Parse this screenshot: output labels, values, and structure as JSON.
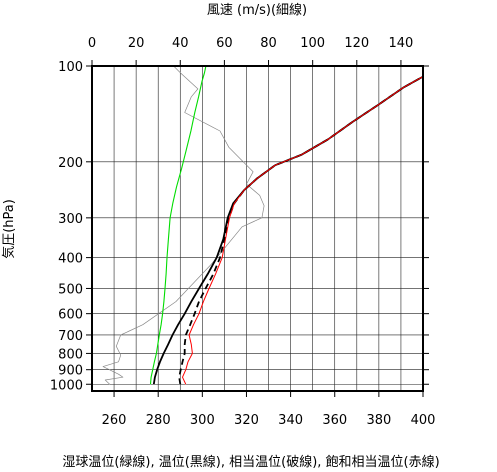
{
  "chart_data": {
    "type": "line",
    "title_top": "風速 (m/s)(細線)",
    "ylabel": "気圧(hPa)",
    "xlabel": "湿球温位(緑線), 温位(黒線), 相当温位(破線), 飽和相当温位(赤線)",
    "y_scale": "log",
    "y_reversed": true,
    "ylim": [
      100,
      1050
    ],
    "y_ticks": [
      100,
      200,
      300,
      400,
      500,
      600,
      700,
      800,
      900,
      1000
    ],
    "y_tick_labels": [
      "100",
      "200",
      "300",
      "400",
      "500",
      "600",
      "700",
      "800",
      "900",
      "1000"
    ],
    "x_bottom_lim": [
      250,
      400
    ],
    "x_bottom_ticks": [
      260,
      280,
      300,
      320,
      340,
      360,
      380,
      400
    ],
    "x_bottom_tick_labels": [
      "260",
      "280",
      "300",
      "320",
      "340",
      "360",
      "380",
      "400"
    ],
    "x_top_lim": [
      0,
      150
    ],
    "x_top_ticks": [
      0,
      20,
      40,
      60,
      80,
      100,
      120,
      140
    ],
    "x_top_tick_labels": [
      "0",
      "20",
      "40",
      "60",
      "80",
      "100",
      "120",
      "140"
    ],
    "grid": true,
    "series": [
      {
        "name": "湿球温位",
        "axis": "bottom",
        "color": "#00dd00",
        "dash": false,
        "points": [
          [
            276.5,
            1000
          ],
          [
            276.8,
            950
          ],
          [
            277.5,
            900
          ],
          [
            278.3,
            850
          ],
          [
            279.2,
            800
          ],
          [
            279.8,
            750
          ],
          [
            280.5,
            700
          ],
          [
            281.3,
            650
          ],
          [
            282.0,
            600
          ],
          [
            282.6,
            550
          ],
          [
            283.1,
            500
          ],
          [
            283.6,
            450
          ],
          [
            284.0,
            400
          ],
          [
            284.6,
            350
          ],
          [
            285.4,
            300
          ],
          [
            286.6,
            270
          ],
          [
            288.3,
            240
          ],
          [
            290.6,
            210
          ],
          [
            292.6,
            185
          ],
          [
            294.8,
            160
          ],
          [
            296.6,
            140
          ],
          [
            298.3,
            125
          ],
          [
            299.8,
            112
          ],
          [
            301.0,
            105
          ],
          [
            301.6,
            100
          ]
        ]
      },
      {
        "name": "温位",
        "axis": "bottom",
        "color": "#000000",
        "dash": false,
        "points": [
          [
            278.0,
            1000
          ],
          [
            278.5,
            950
          ],
          [
            279.5,
            900
          ],
          [
            280.8,
            850
          ],
          [
            282.5,
            800
          ],
          [
            284.5,
            750
          ],
          [
            286.5,
            700
          ],
          [
            289.0,
            650
          ],
          [
            292.0,
            600
          ],
          [
            295.0,
            550
          ],
          [
            298.5,
            500
          ],
          [
            302.5,
            450
          ],
          [
            306.5,
            400
          ],
          [
            309.5,
            350
          ],
          [
            311.5,
            300
          ],
          [
            314.0,
            270
          ],
          [
            319.0,
            245
          ],
          [
            325.0,
            225
          ],
          [
            333.0,
            205
          ],
          [
            345.0,
            190
          ],
          [
            357.0,
            170
          ],
          [
            368.0,
            150
          ],
          [
            380.0,
            132
          ],
          [
            391.0,
            117
          ],
          [
            400.0,
            108
          ]
        ]
      },
      {
        "name": "相当温位",
        "axis": "bottom",
        "color": "#000000",
        "dash": true,
        "points": [
          [
            290.0,
            1000
          ],
          [
            289.5,
            950
          ],
          [
            290.2,
            900
          ],
          [
            291.0,
            850
          ],
          [
            292.0,
            800
          ],
          [
            292.0,
            750
          ],
          [
            292.5,
            700
          ],
          [
            294.5,
            650
          ],
          [
            296.5,
            600
          ],
          [
            298.5,
            550
          ],
          [
            301.5,
            500
          ],
          [
            305.0,
            450
          ],
          [
            308.0,
            400
          ],
          [
            310.0,
            350
          ],
          [
            312.0,
            300
          ],
          [
            314.5,
            270
          ],
          [
            319.0,
            245
          ],
          [
            325.0,
            225
          ],
          [
            333.0,
            205
          ],
          [
            345.0,
            190
          ],
          [
            357.0,
            170
          ],
          [
            368.0,
            150
          ],
          [
            380.0,
            132
          ],
          [
            391.0,
            117
          ],
          [
            400.0,
            108
          ]
        ]
      },
      {
        "name": "飽和相当温位",
        "axis": "bottom",
        "color": "#ff0000",
        "dash": false,
        "points": [
          [
            292.5,
            1000
          ],
          [
            291.0,
            950
          ],
          [
            292.5,
            900
          ],
          [
            293.5,
            850
          ],
          [
            295.5,
            800
          ],
          [
            295.0,
            750
          ],
          [
            294.0,
            700
          ],
          [
            296.0,
            650
          ],
          [
            298.5,
            600
          ],
          [
            300.5,
            550
          ],
          [
            303.0,
            500
          ],
          [
            306.0,
            450
          ],
          [
            309.0,
            400
          ],
          [
            310.5,
            350
          ],
          [
            312.3,
            300
          ],
          [
            314.5,
            270
          ],
          [
            319.0,
            245
          ],
          [
            325.0,
            225
          ],
          [
            333.0,
            205
          ],
          [
            345.0,
            190
          ],
          [
            357.0,
            170
          ],
          [
            368.0,
            150
          ],
          [
            380.0,
            132
          ],
          [
            391.0,
            117
          ],
          [
            400.0,
            108
          ]
        ]
      },
      {
        "name": "風速",
        "axis": "top",
        "color": "#888888",
        "dash": false,
        "points": [
          [
            8,
            1000
          ],
          [
            6,
            970
          ],
          [
            14,
            950
          ],
          [
            12,
            930
          ],
          [
            5,
            880
          ],
          [
            12,
            850
          ],
          [
            13,
            810
          ],
          [
            11,
            760
          ],
          [
            13,
            700
          ],
          [
            23,
            650
          ],
          [
            38,
            550
          ],
          [
            54,
            420
          ],
          [
            68,
            320
          ],
          [
            77,
            300
          ],
          [
            78,
            275
          ],
          [
            76,
            255
          ],
          [
            70,
            235
          ],
          [
            73,
            215
          ],
          [
            62,
            180
          ],
          [
            58,
            160
          ],
          [
            42,
            140
          ],
          [
            45,
            125
          ],
          [
            48,
            118
          ],
          [
            40,
            105
          ],
          [
            37,
            100
          ]
        ]
      }
    ]
  }
}
